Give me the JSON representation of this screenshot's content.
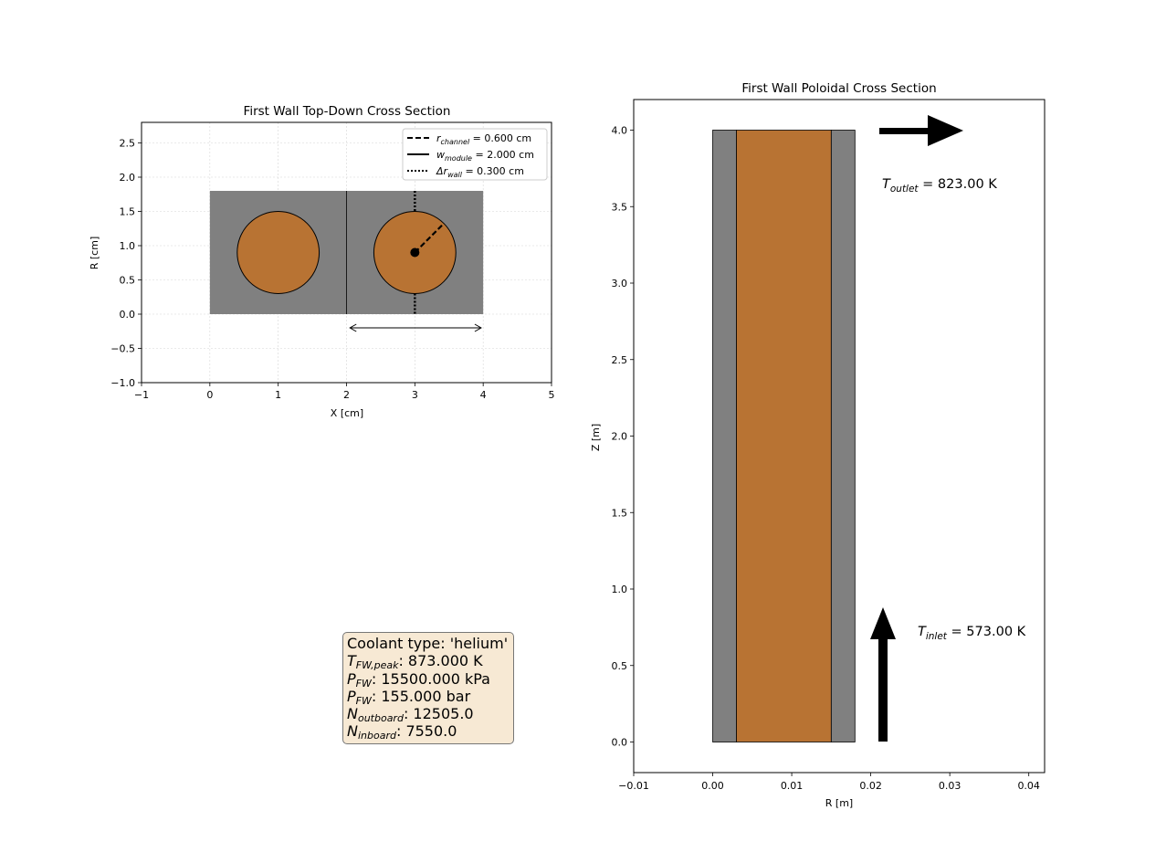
{
  "left_plot": {
    "title": "First Wall Top-Down Cross Section",
    "xlabel": "X [cm]",
    "ylabel": "R [cm]",
    "xlim": [
      -1,
      5
    ],
    "ylim": [
      -1.0,
      2.8
    ],
    "xticks": [
      "−1",
      "0",
      "1",
      "2",
      "3",
      "4",
      "5"
    ],
    "yticks": [
      "−1.0",
      "−0.5",
      "0.0",
      "0.5",
      "1.0",
      "1.5",
      "2.0",
      "2.5"
    ],
    "legend": [
      {
        "sym": "r",
        "sub": "channel",
        "text": " = 0.600 cm",
        "style": "dashed"
      },
      {
        "sym": "w",
        "sub": "module",
        "text": " = 2.000 cm",
        "style": "solid"
      },
      {
        "sym": "Δr",
        "sub": "wall",
        "text": " = 0.300 cm",
        "style": "dotted"
      }
    ],
    "module_range_x": [
      0,
      4
    ],
    "module_range_r": [
      0,
      1.8
    ],
    "channel_centers_x": [
      1,
      3
    ],
    "channel_center_r": 0.9,
    "channel_radius": 0.6,
    "colors": {
      "wall": "#808080",
      "channel": "#b87333"
    }
  },
  "right_plot": {
    "title": "First Wall Poloidal Cross Section",
    "xlabel": "R [m]",
    "ylabel": "Z [m]",
    "xlim": [
      -0.01,
      0.042
    ],
    "ylim": [
      -0.2,
      4.2
    ],
    "xticks": [
      "−0.01",
      "0.00",
      "0.01",
      "0.02",
      "0.03",
      "0.04"
    ],
    "yticks": [
      "0.0",
      "0.5",
      "1.0",
      "1.5",
      "2.0",
      "2.5",
      "3.0",
      "3.5",
      "4.0"
    ],
    "wall_thickness": 0.003,
    "channel_width": 0.012,
    "height": 4.0,
    "outlet_label": {
      "sym": "T",
      "sub": "outlet",
      "text": " = 823.00 K"
    },
    "inlet_label": {
      "sym": "T",
      "sub": "inlet",
      "text": " = 573.00 K"
    }
  },
  "info_box": [
    {
      "text": "Coolant type: 'helium'"
    },
    {
      "sym": "T",
      "sub": "FW,peak",
      "text": ": 873.000 K"
    },
    {
      "sym": "P",
      "sub": "FW",
      "text": ": 15500.000 kPa"
    },
    {
      "sym": "P",
      "sub": "FW",
      "text": ": 155.000 bar"
    },
    {
      "sym": "N",
      "sub": "outboard",
      "text": ": 12505.0"
    },
    {
      "sym": "N",
      "sub": "inboard",
      "text": ": 7550.0"
    }
  ]
}
